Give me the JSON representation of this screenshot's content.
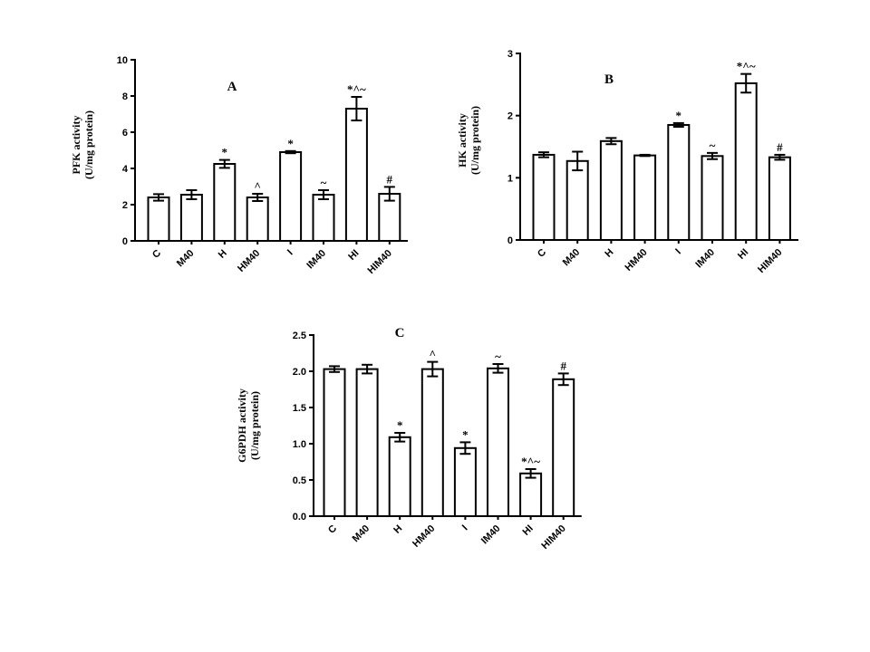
{
  "chart_data": [
    {
      "type": "bar",
      "panel_label": "A",
      "ylabel": [
        "PFK activity",
        "(U/mg protein)"
      ],
      "ylim": [
        0,
        10
      ],
      "yticks": [
        0,
        2,
        4,
        6,
        8,
        10
      ],
      "categories": [
        "C",
        "M40",
        "H",
        "HM40",
        "I",
        "IM40",
        "HI",
        "HIM40"
      ],
      "values": [
        2.4,
        2.55,
        4.25,
        2.4,
        4.9,
        2.55,
        7.3,
        2.6
      ],
      "errors": [
        0.18,
        0.25,
        0.22,
        0.2,
        0.06,
        0.25,
        0.65,
        0.38
      ],
      "annotations": [
        "",
        "",
        "*",
        "^",
        "*",
        "~",
        "*^~",
        "#"
      ],
      "grid": false
    },
    {
      "type": "bar",
      "panel_label": "B",
      "ylabel": [
        "HK activity",
        "(U/mg protein)"
      ],
      "ylim": [
        0,
        3
      ],
      "yticks": [
        0,
        1,
        2,
        3
      ],
      "categories": [
        "C",
        "M40",
        "H",
        "HM40",
        "I",
        "IM40",
        "HI",
        "HIM40"
      ],
      "values": [
        1.37,
        1.27,
        1.59,
        1.36,
        1.85,
        1.35,
        2.52,
        1.33
      ],
      "errors": [
        0.04,
        0.15,
        0.05,
        0.01,
        0.03,
        0.05,
        0.15,
        0.04
      ],
      "annotations": [
        "",
        "",
        "",
        "",
        "*",
        "~",
        "*^~",
        "#"
      ],
      "grid": false
    },
    {
      "type": "bar",
      "panel_label": "C",
      "ylabel": [
        "G6PDH activity",
        "(U/mg protein)"
      ],
      "ylim": [
        0,
        2.5
      ],
      "yticks": [
        "0.0",
        "0.5",
        "1.0",
        "1.5",
        "2.0",
        "2.5"
      ],
      "categories": [
        "C",
        "M40",
        "H",
        "HM40",
        "I",
        "IM40",
        "HI",
        "HIM40"
      ],
      "values": [
        2.03,
        2.03,
        1.09,
        2.03,
        0.94,
        2.04,
        0.59,
        1.89
      ],
      "errors": [
        0.04,
        0.06,
        0.06,
        0.1,
        0.08,
        0.06,
        0.06,
        0.08
      ],
      "annotations": [
        "",
        "",
        "*",
        "^",
        "*",
        "~",
        "*^~",
        "#"
      ],
      "grid": false
    }
  ]
}
